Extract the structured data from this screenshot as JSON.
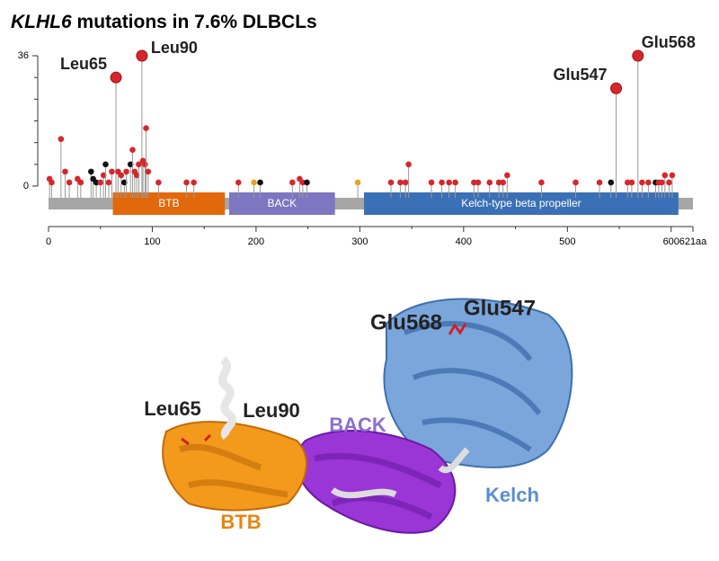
{
  "chart_data": {
    "type": "lollipop",
    "title_gene": "KLHL6",
    "title_rest": "mutations in 7.6% DLBCLs",
    "x": [
      1,
      3,
      12,
      16,
      20,
      28,
      31,
      41,
      43,
      46,
      50,
      53,
      55,
      58,
      61,
      65,
      67,
      70,
      73,
      75,
      79,
      81,
      83,
      85,
      87,
      90,
      91,
      93,
      94,
      96,
      106,
      133,
      140,
      183,
      198,
      204,
      235,
      242,
      245,
      249,
      298,
      330,
      339,
      344,
      347,
      369,
      379,
      386,
      392,
      410,
      414,
      425,
      434,
      438,
      442,
      475,
      508,
      531,
      542,
      547,
      558,
      562,
      568,
      572,
      578,
      585,
      588,
      591,
      594,
      598,
      601
    ],
    "values": [
      2,
      1,
      13,
      4,
      1,
      2,
      1,
      4,
      2,
      1,
      1,
      3,
      6,
      1,
      4,
      30,
      4,
      3,
      1,
      4,
      6,
      10,
      4,
      3,
      6,
      36,
      7,
      6,
      16,
      4,
      1,
      1,
      1,
      1,
      1,
      1,
      1,
      2,
      1,
      1,
      1,
      1,
      1,
      1,
      6,
      1,
      1,
      1,
      1,
      1,
      1,
      1,
      1,
      1,
      3,
      1,
      1,
      1,
      1,
      27,
      1,
      1,
      36,
      1,
      1,
      1,
      1,
      1,
      3,
      1,
      3
    ],
    "colors": [
      "#d7262b",
      "#d7262b",
      "#d7262b",
      "#d7262b",
      "#d7262b",
      "#d7262b",
      "#d7262b",
      "#111111",
      "#111111",
      "#111111",
      "#d7262b",
      "#d7262b",
      "#111111",
      "#d7262b",
      "#d7262b",
      "#d7262b",
      "#d7262b",
      "#d7262b",
      "#111111",
      "#d7262b",
      "#111111",
      "#d7262b",
      "#d7262b",
      "#d7262b",
      "#d7262b",
      "#d7262b",
      "#d7262b",
      "#d7262b",
      "#d7262b",
      "#d7262b",
      "#d7262b",
      "#d7262b",
      "#d7262b",
      "#d7262b",
      "#e0a526",
      "#111111",
      "#d7262b",
      "#d7262b",
      "#d7262b",
      "#111111",
      "#e0a526",
      "#d7262b",
      "#d7262b",
      "#d7262b",
      "#d7262b",
      "#d7262b",
      "#d7262b",
      "#d7262b",
      "#d7262b",
      "#d7262b",
      "#d7262b",
      "#d7262b",
      "#d7262b",
      "#d7262b",
      "#d7262b",
      "#d7262b",
      "#d7262b",
      "#d7262b",
      "#111111",
      "#d7262b",
      "#d7262b",
      "#d7262b",
      "#d7262b",
      "#d7262b",
      "#d7262b",
      "#111111",
      "#d7262b",
      "#d7262b",
      "#d7262b",
      "#d7262b",
      "#d7262b"
    ],
    "annotations": [
      {
        "text": "Leu65",
        "x": 65
      },
      {
        "text": "Leu90",
        "x": 90
      },
      {
        "text": "Glu547",
        "x": 547
      },
      {
        "text": "Glu568",
        "x": 568
      }
    ],
    "domains": [
      {
        "name": "BTB",
        "start": 62,
        "end": 170,
        "color": "#e2680c"
      },
      {
        "name": "BACK",
        "start": 174,
        "end": 276,
        "color": "#7d76c0"
      },
      {
        "name": "Kelch-type beta propeller",
        "start": 304,
        "end": 607,
        "color": "#3a70b6"
      }
    ],
    "xlim": [
      0,
      621
    ],
    "xticks": [
      0,
      100,
      200,
      300,
      400,
      500,
      600,
      {
        "value": 621,
        "label": "621aa"
      }
    ],
    "ylim": [
      0,
      36
    ],
    "yticks": [
      0,
      36
    ]
  },
  "structure": {
    "labels": [
      {
        "text": "Glu568",
        "color": "#222222"
      },
      {
        "text": "Glu547",
        "color": "#222222"
      },
      {
        "text": "Leu65",
        "color": "#222222"
      },
      {
        "text": "Leu90",
        "color": "#222222"
      },
      {
        "text": "BACK",
        "color": "#8a6fd0"
      },
      {
        "text": "BTB",
        "color": "#e8850e"
      },
      {
        "text": "Kelch",
        "color": "#5b8fcf"
      }
    ]
  }
}
